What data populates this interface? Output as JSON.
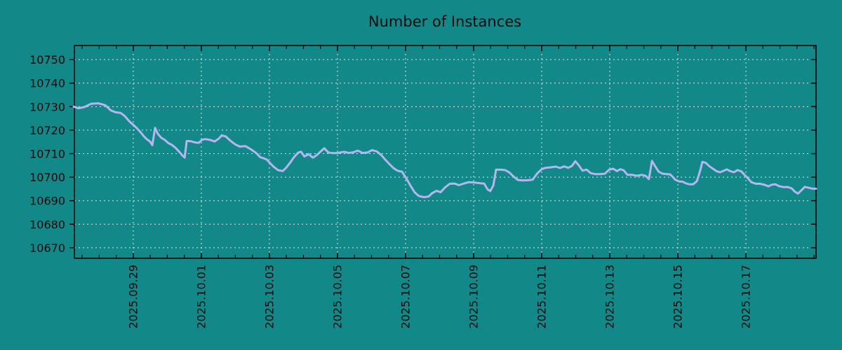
{
  "chart_data": {
    "type": "line",
    "title": "Number of Instances",
    "legend": "none",
    "grid": "dotted",
    "x_axis": {
      "unit": "date",
      "domain_days": [
        -1.73,
        20.06
      ],
      "major_tick_days": [
        0,
        2,
        4,
        6,
        8,
        10,
        12,
        14,
        16,
        18
      ],
      "tick_labels": [
        "2025.09.29",
        "2025.10.01",
        "2025.10.03",
        "2025.10.05",
        "2025.10.07",
        "2025.10.09",
        "2025.10.11",
        "2025.10.13",
        "2025.10.15",
        "2025.10.17"
      ],
      "minor_tick_step_days": 0.5,
      "label_rotation_deg": -90
    },
    "y_axis": {
      "min": 10665.5,
      "max": 10756,
      "ticks": [
        10670,
        10680,
        10690,
        10700,
        10710,
        10720,
        10730,
        10740,
        10750
      ]
    },
    "series": [
      {
        "name": "instances",
        "color": "#b4b7ef",
        "points": [
          [
            -1.75,
            10730
          ],
          [
            -1.61,
            10729.3
          ],
          [
            -1.44,
            10729.8
          ],
          [
            -1.24,
            10731.2
          ],
          [
            -1.03,
            10731.4
          ],
          [
            -0.82,
            10730.6
          ],
          [
            -0.66,
            10728.4
          ],
          [
            -0.52,
            10727.6
          ],
          [
            -0.37,
            10727.3
          ],
          [
            -0.25,
            10726
          ],
          [
            -0.1,
            10723.5
          ],
          [
            0,
            10722.3
          ],
          [
            0.1,
            10720.9
          ],
          [
            0.21,
            10719.2
          ],
          [
            0.31,
            10717.4
          ],
          [
            0.41,
            10716
          ],
          [
            0.49,
            10715.2
          ],
          [
            0.56,
            10713.6
          ],
          [
            0.64,
            10721
          ],
          [
            0.72,
            10718.5
          ],
          [
            0.82,
            10716.8
          ],
          [
            0.93,
            10715.8
          ],
          [
            1.03,
            10714.5
          ],
          [
            1.13,
            10713.8
          ],
          [
            1.24,
            10712.5
          ],
          [
            1.34,
            10711
          ],
          [
            1.44,
            10709.3
          ],
          [
            1.51,
            10708.3
          ],
          [
            1.57,
            10715.4
          ],
          [
            1.69,
            10715.3
          ],
          [
            1.81,
            10714.8
          ],
          [
            1.92,
            10714.6
          ],
          [
            2.02,
            10715.9
          ],
          [
            2.12,
            10716.2
          ],
          [
            2.27,
            10715.8
          ],
          [
            2.39,
            10715.2
          ],
          [
            2.52,
            10716.5
          ],
          [
            2.6,
            10717.8
          ],
          [
            2.72,
            10717.3
          ],
          [
            2.85,
            10715.5
          ],
          [
            2.99,
            10714
          ],
          [
            3.13,
            10713
          ],
          [
            3.3,
            10713.2
          ],
          [
            3.46,
            10711.8
          ],
          [
            3.61,
            10710.3
          ],
          [
            3.73,
            10708.5
          ],
          [
            3.84,
            10708
          ],
          [
            3.92,
            10707.5
          ],
          [
            4.02,
            10706
          ],
          [
            4.12,
            10704.5
          ],
          [
            4.25,
            10703
          ],
          [
            4.39,
            10702.6
          ],
          [
            4.49,
            10704
          ],
          [
            4.6,
            10706
          ],
          [
            4.72,
            10708.5
          ],
          [
            4.85,
            10710.5
          ],
          [
            4.93,
            10710.8
          ],
          [
            5.03,
            10708.8
          ],
          [
            5.15,
            10709.8
          ],
          [
            5.28,
            10708.3
          ],
          [
            5.4,
            10709.5
          ],
          [
            5.51,
            10711
          ],
          [
            5.61,
            10712.3
          ],
          [
            5.73,
            10710.5
          ],
          [
            5.88,
            10710.2
          ],
          [
            6.02,
            10710.3
          ],
          [
            6.19,
            10710.8
          ],
          [
            6.33,
            10710.3
          ],
          [
            6.45,
            10710.5
          ],
          [
            6.6,
            10711.3
          ],
          [
            6.74,
            10710.3
          ],
          [
            6.89,
            10710.5
          ],
          [
            7.01,
            10711.5
          ],
          [
            7.15,
            10711
          ],
          [
            7.28,
            10709.5
          ],
          [
            7.4,
            10707.5
          ],
          [
            7.53,
            10705.5
          ],
          [
            7.65,
            10703.8
          ],
          [
            7.77,
            10702.7
          ],
          [
            7.9,
            10702.3
          ],
          [
            8.02,
            10699.5
          ],
          [
            8.14,
            10696.5
          ],
          [
            8.27,
            10693.5
          ],
          [
            8.39,
            10692
          ],
          [
            8.54,
            10691.5
          ],
          [
            8.68,
            10691.8
          ],
          [
            8.78,
            10693.2
          ],
          [
            8.91,
            10694.2
          ],
          [
            9.03,
            10693.6
          ],
          [
            9.15,
            10695.5
          ],
          [
            9.3,
            10697.2
          ],
          [
            9.44,
            10697.3
          ],
          [
            9.57,
            10696.6
          ],
          [
            9.69,
            10697.2
          ],
          [
            9.86,
            10697.9
          ],
          [
            10.02,
            10697.7
          ],
          [
            10.19,
            10697.4
          ],
          [
            10.31,
            10697.3
          ],
          [
            10.41,
            10694.8
          ],
          [
            10.49,
            10694.1
          ],
          [
            10.58,
            10696.5
          ],
          [
            10.66,
            10703.2
          ],
          [
            10.8,
            10703.2
          ],
          [
            10.93,
            10703
          ],
          [
            11.05,
            10702
          ],
          [
            11.18,
            10700.2
          ],
          [
            11.3,
            10698.8
          ],
          [
            11.44,
            10698.6
          ],
          [
            11.59,
            10698.7
          ],
          [
            11.73,
            10698.9
          ],
          [
            11.88,
            10701.8
          ],
          [
            12,
            10703.4
          ],
          [
            12.12,
            10704
          ],
          [
            12.27,
            10704.2
          ],
          [
            12.41,
            10704.5
          ],
          [
            12.54,
            10703.9
          ],
          [
            12.66,
            10704.6
          ],
          [
            12.78,
            10704
          ],
          [
            12.89,
            10704.8
          ],
          [
            12.99,
            10706.8
          ],
          [
            13.09,
            10705
          ],
          [
            13.2,
            10702.8
          ],
          [
            13.32,
            10703.2
          ],
          [
            13.44,
            10701.7
          ],
          [
            13.57,
            10701.3
          ],
          [
            13.71,
            10701.3
          ],
          [
            13.86,
            10701.5
          ],
          [
            13.98,
            10703.2
          ],
          [
            14.1,
            10703.6
          ],
          [
            14.21,
            10702.6
          ],
          [
            14.31,
            10703.4
          ],
          [
            14.41,
            10702.9
          ],
          [
            14.52,
            10701
          ],
          [
            14.66,
            10701
          ],
          [
            14.8,
            10700.6
          ],
          [
            14.93,
            10701
          ],
          [
            15.05,
            10700.6
          ],
          [
            15.15,
            10699.2
          ],
          [
            15.24,
            10706.9
          ],
          [
            15.34,
            10704.5
          ],
          [
            15.44,
            10702.3
          ],
          [
            15.55,
            10701.5
          ],
          [
            15.67,
            10701.3
          ],
          [
            15.77,
            10701.2
          ],
          [
            15.84,
            10700.3
          ],
          [
            15.92,
            10698.9
          ],
          [
            16.04,
            10698.2
          ],
          [
            16.14,
            10698.1
          ],
          [
            16.23,
            10697.4
          ],
          [
            16.33,
            10697
          ],
          [
            16.45,
            10697
          ],
          [
            16.56,
            10698.3
          ],
          [
            16.66,
            10703
          ],
          [
            16.72,
            10706.5
          ],
          [
            16.82,
            10706.1
          ],
          [
            16.93,
            10704.6
          ],
          [
            17.03,
            10703.6
          ],
          [
            17.13,
            10702.6
          ],
          [
            17.24,
            10702.1
          ],
          [
            17.34,
            10702.7
          ],
          [
            17.44,
            10703.3
          ],
          [
            17.55,
            10702.5
          ],
          [
            17.65,
            10702.1
          ],
          [
            17.75,
            10703
          ],
          [
            17.86,
            10702.5
          ],
          [
            17.96,
            10701
          ],
          [
            18.06,
            10699.5
          ],
          [
            18.16,
            10697.9
          ],
          [
            18.29,
            10697.2
          ],
          [
            18.41,
            10697.2
          ],
          [
            18.54,
            10696.8
          ],
          [
            18.66,
            10696.1
          ],
          [
            18.76,
            10696.8
          ],
          [
            18.87,
            10697
          ],
          [
            18.97,
            10696.2
          ],
          [
            19.09,
            10695.8
          ],
          [
            19.22,
            10695.8
          ],
          [
            19.34,
            10695.3
          ],
          [
            19.44,
            10693.8
          ],
          [
            19.53,
            10693
          ],
          [
            19.63,
            10694.4
          ],
          [
            19.73,
            10695.9
          ],
          [
            19.84,
            10695.5
          ],
          [
            19.96,
            10695.1
          ],
          [
            20.06,
            10695.1
          ]
        ]
      }
    ]
  },
  "style": {
    "background_color": "#128888",
    "grid_color": "#e4e4e4",
    "axis_color": "#000000",
    "text_color": "#0a0a0a",
    "line_color": "#b4b7ef"
  }
}
